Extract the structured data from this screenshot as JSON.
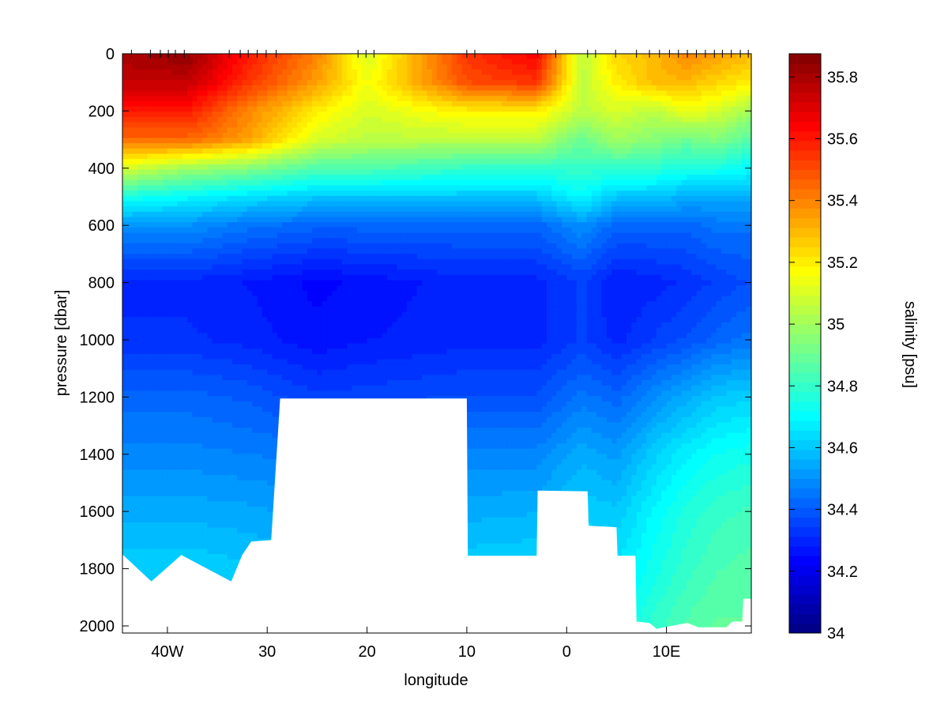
{
  "chart_data": [
    {
      "type": "heatmap",
      "plot": "ocean-section-contourf",
      "title": "",
      "xlabel": "longitude",
      "ylabel": "pressure [dbar]",
      "x_range_deg_east": [
        -44.5,
        18.5
      ],
      "y_range_dbar": [
        2025,
        0
      ],
      "y_inverted": true,
      "x_ticks": [
        {
          "value": -40,
          "label": "40W"
        },
        {
          "value": -30,
          "label": "30"
        },
        {
          "value": -20,
          "label": "20"
        },
        {
          "value": -10,
          "label": "10"
        },
        {
          "value": 0,
          "label": "0"
        },
        {
          "value": 10,
          "label": "10E"
        }
      ],
      "y_ticks": [
        {
          "value": 0,
          "label": "0"
        },
        {
          "value": 200,
          "label": "200"
        },
        {
          "value": 400,
          "label": "400"
        },
        {
          "value": 600,
          "label": "600"
        },
        {
          "value": 800,
          "label": "800"
        },
        {
          "value": 1000,
          "label": "1000"
        },
        {
          "value": 1200,
          "label": "1200"
        },
        {
          "value": 1400,
          "label": "1400"
        },
        {
          "value": 1600,
          "label": "1600"
        },
        {
          "value": 1800,
          "label": "1800"
        },
        {
          "value": 2000,
          "label": "2000"
        }
      ],
      "station_longitudes": [
        -43.6,
        -41.7,
        -40.7,
        -39.9,
        -39.2,
        -38.3,
        -33.8,
        -32.7,
        -31.9,
        -31.0,
        -30.1,
        -29.1,
        -20.9,
        -20.1,
        -19.3,
        -10.0,
        -9.2,
        -2.9,
        -1.1,
        2.1,
        2.9,
        4.9,
        7.0,
        8.3,
        9.3,
        10.3,
        11.2,
        12.1,
        13.0,
        13.9,
        14.8,
        15.6,
        16.5,
        17.4,
        18.2
      ],
      "bottom_profile": [
        {
          "lon": -44.5,
          "depth": 1750
        },
        {
          "lon": -41.6,
          "depth": 1845
        },
        {
          "lon": -38.6,
          "depth": 1752
        },
        {
          "lon": -33.6,
          "depth": 1845
        },
        {
          "lon": -32.5,
          "depth": 1752
        },
        {
          "lon": -31.6,
          "depth": 1705
        },
        {
          "lon": -29.6,
          "depth": 1700
        },
        {
          "lon": -28.7,
          "depth": 1205
        },
        {
          "lon": -10.0,
          "depth": 1205
        },
        {
          "lon": -9.9,
          "depth": 1755
        },
        {
          "lon": -3.0,
          "depth": 1755
        },
        {
          "lon": -2.9,
          "depth": 1527
        },
        {
          "lon": 2.1,
          "depth": 1530
        },
        {
          "lon": 2.2,
          "depth": 1650
        },
        {
          "lon": 5.0,
          "depth": 1655
        },
        {
          "lon": 5.1,
          "depth": 1755
        },
        {
          "lon": 6.9,
          "depth": 1755
        },
        {
          "lon": 7.0,
          "depth": 1985
        },
        {
          "lon": 8.3,
          "depth": 1990
        },
        {
          "lon": 9.0,
          "depth": 2010
        },
        {
          "lon": 10.5,
          "depth": 2000
        },
        {
          "lon": 12.1,
          "depth": 1990
        },
        {
          "lon": 13.2,
          "depth": 2005
        },
        {
          "lon": 16.0,
          "depth": 2005
        },
        {
          "lon": 16.6,
          "depth": 1985
        },
        {
          "lon": 17.6,
          "depth": 1985
        },
        {
          "lon": 17.7,
          "depth": 1905
        },
        {
          "lon": 18.5,
          "depth": 1905
        }
      ],
      "salinity_profiles_psu": {
        "depths_dbar": [
          0,
          100,
          200,
          300,
          400,
          500,
          600,
          800,
          1000,
          1200,
          1400,
          1600,
          1800,
          2000
        ],
        "by_longitude": [
          {
            "lon": -44.5,
            "values": [
              35.8,
              35.75,
              35.6,
              35.45,
              35.1,
              34.75,
              34.5,
              34.3,
              34.32,
              34.42,
              34.48,
              34.55,
              34.62,
              34.65
            ]
          },
          {
            "lon": -38,
            "values": [
              35.85,
              35.75,
              35.6,
              35.45,
              35.0,
              34.7,
              34.5,
              34.3,
              34.32,
              34.42,
              34.48,
              34.55,
              34.62,
              34.65
            ]
          },
          {
            "lon": -32,
            "values": [
              35.6,
              35.55,
              35.4,
              35.35,
              34.95,
              34.65,
              34.45,
              34.28,
              34.3,
              34.4,
              34.47,
              34.54,
              34.6,
              34.65
            ]
          },
          {
            "lon": -25,
            "values": [
              35.4,
              35.35,
              35.2,
              35.1,
              34.85,
              34.6,
              34.42,
              34.24,
              34.26,
              34.35,
              34.45,
              34.52,
              34.58,
              34.62
            ]
          },
          {
            "lon": -20,
            "values": [
              35.1,
              35.15,
              35.1,
              35.05,
              34.85,
              34.6,
              34.42,
              34.26,
              34.28,
              34.36,
              34.45,
              34.52,
              34.58,
              34.62
            ]
          },
          {
            "lon": -10,
            "values": [
              35.55,
              35.5,
              35.2,
              35.05,
              34.8,
              34.6,
              34.42,
              34.3,
              34.3,
              34.38,
              34.48,
              34.55,
              34.62,
              34.66
            ]
          },
          {
            "lon": -3,
            "values": [
              35.65,
              35.55,
              35.2,
              35.05,
              34.8,
              34.6,
              34.42,
              34.3,
              34.3,
              34.38,
              34.48,
              34.56,
              34.63,
              34.67
            ]
          },
          {
            "lon": 1.5,
            "values": [
              35.05,
              35.05,
              35.05,
              34.9,
              34.8,
              34.7,
              34.5,
              34.35,
              34.35,
              34.45,
              34.55,
              34.62,
              34.66,
              34.68
            ]
          },
          {
            "lon": 5,
            "values": [
              35.25,
              35.2,
              35.1,
              35.0,
              34.8,
              34.6,
              34.42,
              34.28,
              34.3,
              34.42,
              34.52,
              34.6,
              34.66,
              34.7
            ]
          },
          {
            "lon": 9,
            "values": [
              35.3,
              35.3,
              35.05,
              34.95,
              34.78,
              34.6,
              34.42,
              34.3,
              34.35,
              34.5,
              34.62,
              34.7,
              34.74,
              34.8
            ]
          },
          {
            "lon": 12,
            "values": [
              35.4,
              35.3,
              35.15,
              34.9,
              34.75,
              34.55,
              34.42,
              34.32,
              34.38,
              34.55,
              34.68,
              34.76,
              34.8,
              34.85
            ]
          },
          {
            "lon": 15,
            "values": [
              35.35,
              35.25,
              35.1,
              34.95,
              34.75,
              34.55,
              34.45,
              34.35,
              34.42,
              34.6,
              34.72,
              34.8,
              34.84,
              34.88
            ]
          },
          {
            "lon": 18.5,
            "values": [
              35.3,
              35.2,
              35.0,
              34.85,
              34.7,
              34.55,
              34.45,
              34.38,
              34.45,
              34.62,
              34.74,
              34.82,
              34.86,
              34.88
            ]
          }
        ]
      }
    },
    {
      "type": "colorbar",
      "label": "salinity [psu]",
      "range": [
        34,
        35.875
      ],
      "colormap": "jet",
      "levels": 60,
      "ticks": [
        {
          "value": 34,
          "label": "34"
        },
        {
          "value": 34.2,
          "label": "34.2"
        },
        {
          "value": 34.4,
          "label": "34.4"
        },
        {
          "value": 34.6,
          "label": "34.6"
        },
        {
          "value": 34.8,
          "label": "34.8"
        },
        {
          "value": 35,
          "label": "35"
        },
        {
          "value": 35.2,
          "label": "35.2"
        },
        {
          "value": 35.4,
          "label": "35.4"
        },
        {
          "value": 35.6,
          "label": "35.6"
        },
        {
          "value": 35.8,
          "label": "35.8"
        }
      ]
    }
  ]
}
